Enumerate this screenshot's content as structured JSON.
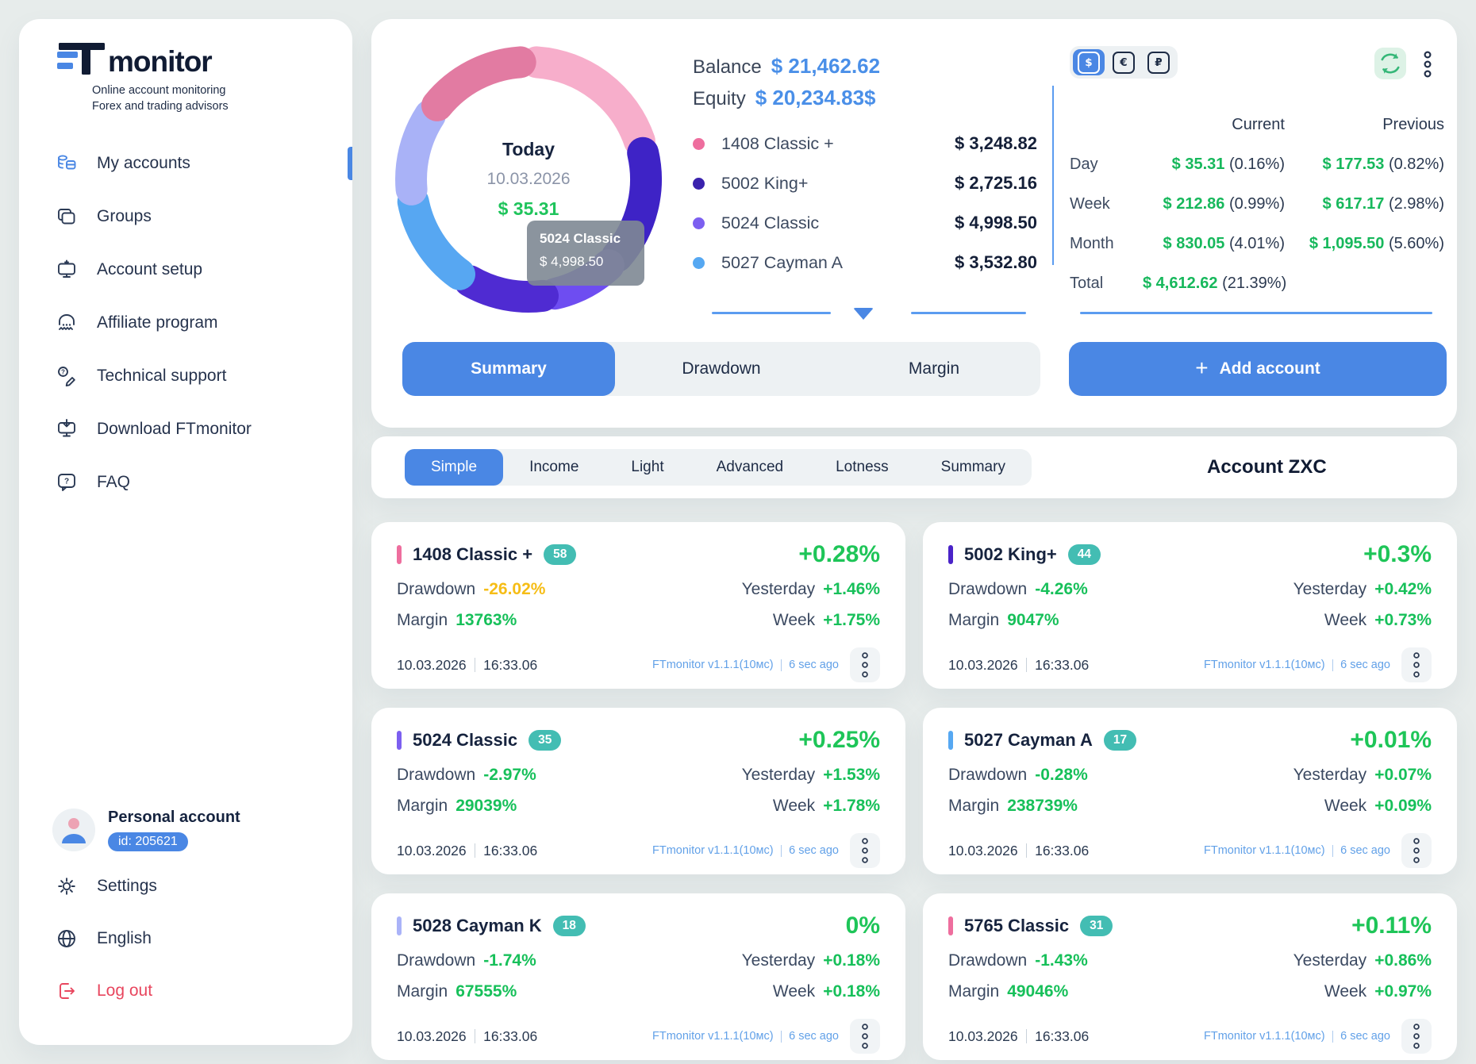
{
  "sidebar": {
    "brand": "monitor",
    "tagline1": "Online account monitoring",
    "tagline2": "Forex and trading advisors",
    "items": [
      {
        "label": "My accounts"
      },
      {
        "label": "Groups"
      },
      {
        "label": "Account setup"
      },
      {
        "label": "Affiliate program"
      },
      {
        "label": "Technical support"
      },
      {
        "label": "Download FTmonitor"
      },
      {
        "label": "FAQ"
      }
    ],
    "profile": {
      "name": "Personal account",
      "id_badge": "id: 205621"
    },
    "settings_label": "Settings",
    "language_label": "English",
    "logout_label": "Log out"
  },
  "overview": {
    "donut_center": {
      "title": "Today",
      "date": "10.03.2026",
      "value": "$ 35.31"
    },
    "tooltip": {
      "title": "5024 Classic",
      "value": "$ 4,998.50"
    },
    "balance_label": "Balance",
    "balance_value": "$ 21,462.62",
    "equity_label": "Equity",
    "equity_value": "$ 20,234.83$",
    "legend": [
      {
        "name": "1408 Classic +",
        "value": "$ 3,248.82",
        "color": "#ee6e9e"
      },
      {
        "name": "5002 King+",
        "value": "$ 2,725.16",
        "color": "#3a22ad"
      },
      {
        "name": "5024 Classic",
        "value": "$ 4,998.50",
        "color": "#7c5ff0"
      },
      {
        "name": "5027 Cayman A",
        "value": "$ 3,532.80",
        "color": "#56a8f2"
      }
    ],
    "currency": [
      "$",
      "€",
      "₽"
    ],
    "stats": {
      "col_current": "Current",
      "col_previous": "Previous",
      "rows": [
        {
          "label": "Day",
          "current": "$ 35.31",
          "current_pct": "(0.16%)",
          "previous": "$ 177.53",
          "previous_pct": "(0.82%)"
        },
        {
          "label": "Week",
          "current": "$ 212.86",
          "current_pct": "(0.99%)",
          "previous": "$ 617.17",
          "previous_pct": "(2.98%)"
        },
        {
          "label": "Month",
          "current": "$ 830.05",
          "current_pct": "(4.01%)",
          "previous": "$ 1,095.50",
          "previous_pct": "(5.60%)"
        },
        {
          "label": "Total",
          "current": "$ 4,612.62",
          "current_pct": "(21.39%)",
          "previous": "",
          "previous_pct": ""
        }
      ]
    },
    "tabs": [
      "Summary",
      "Drawdown",
      "Margin"
    ],
    "add_account_label": "Add account"
  },
  "filter": {
    "pills": [
      "Simple",
      "Income",
      "Light",
      "Advanced",
      "Lotness",
      "Summary"
    ],
    "account_title": "Account ZXC"
  },
  "card_labels": {
    "drawdown": "Drawdown",
    "margin": "Margin",
    "yesterday": "Yesterday",
    "week": "Week"
  },
  "cards": [
    {
      "title": "1408 Classic +",
      "badge": "58",
      "bar_color": "#ee6e9e",
      "change": "+0.28%",
      "drawdown": "-26.02%",
      "drawdown_color": "#f6bd16",
      "margin": "13763%",
      "yesterday": "+1.46%",
      "week": "+1.75%",
      "date": "10.03.2026",
      "time": "16:33.06",
      "version": "FTmonitor v1.1.1(10мс)",
      "ago": "6 sec ago"
    },
    {
      "title": "5002 King+",
      "badge": "44",
      "bar_color": "#4a23c8",
      "change": "+0.3%",
      "drawdown": "-4.26%",
      "drawdown_color": "#17c05a",
      "margin": "9047%",
      "yesterday": "+0.42%",
      "week": "+0.73%",
      "date": "10.03.2026",
      "time": "16:33.06",
      "version": "FTmonitor v1.1.1(10мс)",
      "ago": "6 sec ago"
    },
    {
      "title": "5024 Classic",
      "badge": "35",
      "bar_color": "#7c5ff0",
      "change": "+0.25%",
      "drawdown": "-2.97%",
      "drawdown_color": "#17c05a",
      "margin": "29039%",
      "yesterday": "+1.53%",
      "week": "+1.78%",
      "date": "10.03.2026",
      "time": "16:33.06",
      "version": "FTmonitor v1.1.1(10мс)",
      "ago": "6 sec ago"
    },
    {
      "title": "5027 Cayman A",
      "badge": "17",
      "bar_color": "#56a8f2",
      "change": "+0.01%",
      "drawdown": "-0.28%",
      "drawdown_color": "#17c05a",
      "margin": "238739%",
      "yesterday": "+0.07%",
      "week": "+0.09%",
      "date": "10.03.2026",
      "time": "16:33.06",
      "version": "FTmonitor v1.1.1(10мс)",
      "ago": "6 sec ago"
    },
    {
      "title": "5028 Cayman K",
      "badge": "18",
      "bar_color": "#aab3f8",
      "change": "0%",
      "drawdown": "-1.74%",
      "drawdown_color": "#17c05a",
      "margin": "67555%",
      "yesterday": "+0.18%",
      "week": "+0.18%",
      "date": "10.03.2026",
      "time": "16:33.06",
      "version": "FTmonitor v1.1.1(10мс)",
      "ago": "6 sec ago"
    },
    {
      "title": "5765 Classic",
      "badge": "31",
      "bar_color": "#ee6e9e",
      "change": "+0.11%",
      "drawdown": "-1.43%",
      "drawdown_color": "#17c05a",
      "margin": "49046%",
      "yesterday": "+0.86%",
      "week": "+0.97%",
      "date": "10.03.2026",
      "time": "16:33.06",
      "version": "FTmonitor v1.1.1(10мс)",
      "ago": "6 sec ago"
    }
  ],
  "chart_data": {
    "type": "pie",
    "title": "Today 10.03.2026 — daily result $ 35.31",
    "accounts": [
      {
        "name": "1408 Classic +",
        "value": 3248.82,
        "color": "#ee6e9e"
      },
      {
        "name": "5002 King+",
        "value": 2725.16,
        "color": "#3a22ad"
      },
      {
        "name": "5024 Classic",
        "value": 4998.5,
        "color": "#7c5ff0"
      },
      {
        "name": "5027 Cayman A",
        "value": 3532.8,
        "color": "#56a8f2"
      }
    ],
    "balance": 21462.62,
    "equity": 20234.83,
    "segments_deg": [
      {
        "color": "#f7aecb",
        "from": 4,
        "to": 71
      },
      {
        "color": "#3e23c6",
        "from": 77,
        "to": 131
      },
      {
        "color": "#6e4df1",
        "from": 137,
        "to": 167
      },
      {
        "color": "#4f2bd2",
        "from": 173,
        "to": 210
      },
      {
        "color": "#57a7f2",
        "from": 216,
        "to": 259
      },
      {
        "color": "#a9b2f7",
        "from": 265,
        "to": 303
      },
      {
        "color": "#e27ba2",
        "from": 309,
        "to": 356
      }
    ]
  }
}
